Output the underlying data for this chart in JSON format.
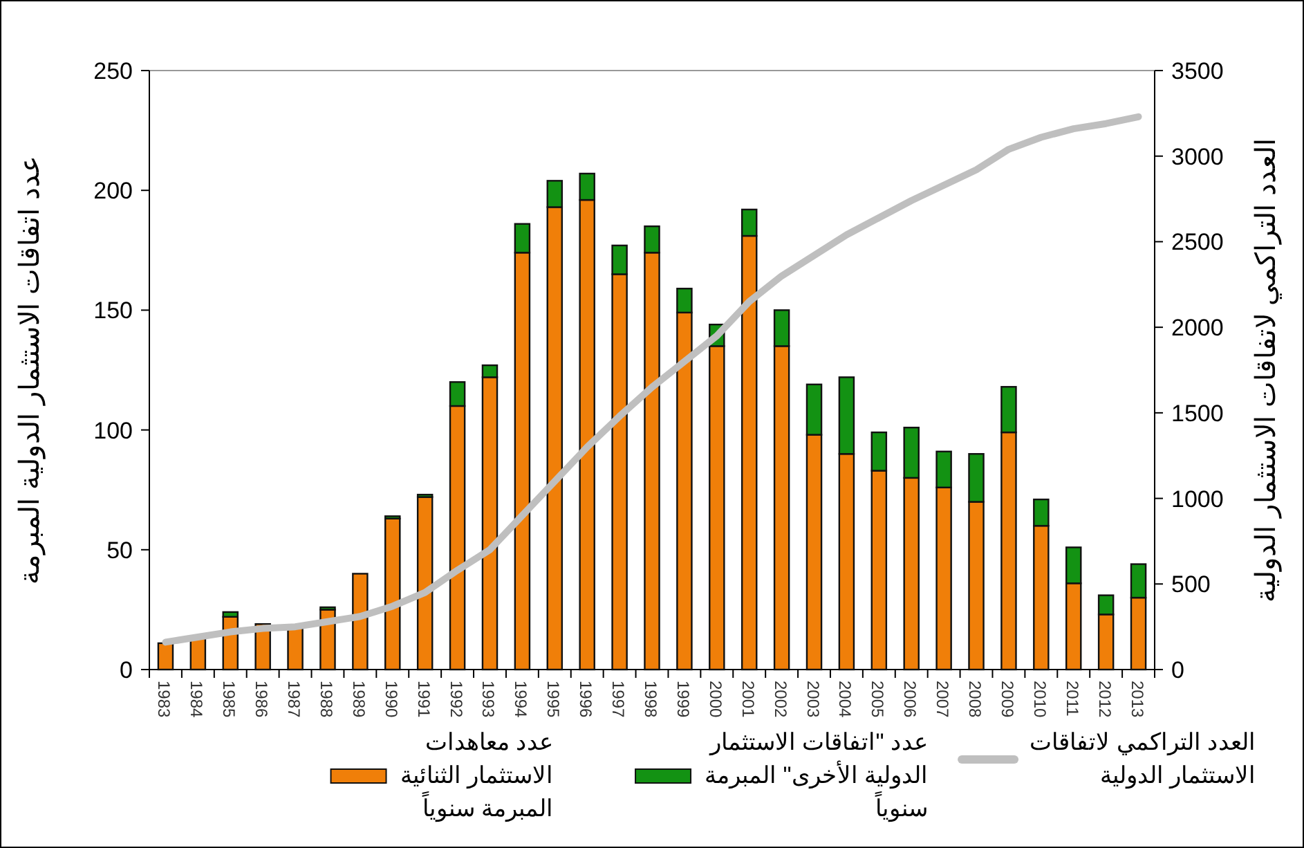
{
  "chart_data": {
    "type": "bar",
    "stacked": true,
    "ylabel": "عدد اتفاقات الاستثمار الدولية المبرمة",
    "y2label": "العدد التراكمي لاتفاقات الاستثمار الدولية",
    "categories": [
      "1983",
      "1984",
      "1985",
      "1986",
      "1987",
      "1988",
      "1989",
      "1990",
      "1991",
      "1992",
      "1993",
      "1994",
      "1995",
      "1996",
      "1997",
      "1998",
      "1999",
      "2000",
      "2001",
      "2002",
      "2003",
      "2004",
      "2005",
      "2006",
      "2007",
      "2008",
      "2009",
      "2010",
      "2011",
      "2012",
      "2013"
    ],
    "series": [
      {
        "name": "عدد معاهدات الاستثمار الثنائية المبرمة سنوياً",
        "color": "#f07f09",
        "values": [
          11,
          13,
          22,
          19,
          18,
          25,
          40,
          63,
          72,
          110,
          122,
          174,
          193,
          196,
          165,
          174,
          149,
          135,
          181,
          135,
          98,
          90,
          83,
          80,
          76,
          70,
          99,
          60,
          36,
          23,
          30
        ]
      },
      {
        "name": "عدد \"اتفاقات الاستثمار الدولية الأخرى\" المبرمة سنوياً",
        "color": "#139213",
        "values": [
          null,
          null,
          2,
          0,
          0,
          1,
          0,
          1,
          1,
          10,
          5,
          12,
          11,
          11,
          12,
          11,
          10,
          9,
          11,
          15,
          21,
          32,
          16,
          21,
          15,
          20,
          19,
          11,
          15,
          8,
          14
        ]
      },
      {
        "name": "العدد التراكمي لاتفاقات الاستثمار الدولية",
        "color": "#bfbfbf",
        "type": "line",
        "axis": "y2",
        "values": [
          160,
          190,
          220,
          240,
          250,
          280,
          310,
          370,
          450,
          580,
          700,
          900,
          1100,
          1300,
          1480,
          1650,
          1800,
          1950,
          2150,
          2300,
          2420,
          2540,
          2640,
          2740,
          2830,
          2920,
          3040,
          3110,
          3160,
          3190,
          3230
        ]
      }
    ],
    "ylim": [
      0,
      250
    ],
    "yticks": [
      0,
      50,
      100,
      150,
      200,
      250
    ],
    "y2lim": [
      0,
      3500
    ],
    "y2ticks": [
      0,
      500,
      1000,
      1500,
      2000,
      2500,
      3000,
      3500
    ],
    "legend": "bottom",
    "grid": false
  }
}
